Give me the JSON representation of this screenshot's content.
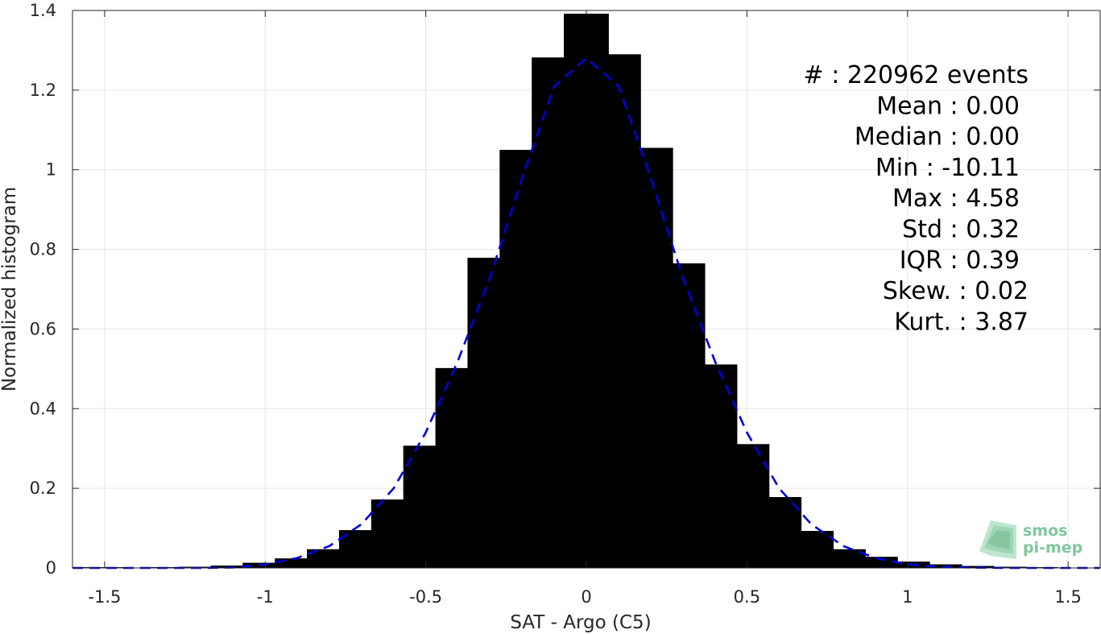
{
  "chart_data": {
    "type": "bar",
    "xlabel": "SAT - Argo (C5)",
    "ylabel": "Normalized histogram",
    "xlim": [
      -1.6,
      1.6
    ],
    "ylim": [
      0,
      1.4
    ],
    "xticks": [
      -1.5,
      -1,
      -0.5,
      0,
      0.5,
      1,
      1.5
    ],
    "xtick_labels": [
      "-1.5",
      "-1",
      "-0.5",
      "0",
      "0.5",
      "1",
      "1.5"
    ],
    "yticks": [
      0,
      0.2,
      0.4,
      0.6,
      0.8,
      1,
      1.2,
      1.4
    ],
    "ytick_labels": [
      "0",
      "0.2",
      "0.4",
      "0.6",
      "0.8",
      "1",
      "1.2",
      "1.4"
    ],
    "grid": true,
    "bar_color": "#000000",
    "bars": {
      "x": [
        -1.5,
        -1.4,
        -1.3,
        -1.2,
        -1.1,
        -1.0,
        -0.9,
        -0.8,
        -0.7,
        -0.6,
        -0.5,
        -0.4,
        -0.3,
        -0.2,
        -0.1,
        0.0,
        0.1,
        0.2,
        0.3,
        0.4,
        0.5,
        0.6,
        0.7,
        0.8,
        0.9,
        1.0,
        1.1,
        1.2,
        1.3,
        1.4,
        1.5
      ],
      "values": [
        0.002,
        0.001,
        0.002,
        0.003,
        0.006,
        0.013,
        0.024,
        0.047,
        0.095,
        0.172,
        0.307,
        0.502,
        0.779,
        1.05,
        1.282,
        1.392,
        1.29,
        1.055,
        0.765,
        0.511,
        0.311,
        0.178,
        0.093,
        0.047,
        0.028,
        0.016,
        0.009,
        0.005,
        0.003,
        0.002,
        0.001
      ]
    },
    "fit_curve": {
      "style": "dashed",
      "color": "#0000dd",
      "x": [
        -1.6,
        -1.5,
        -1.4,
        -1.3,
        -1.2,
        -1.1,
        -1.0,
        -0.9,
        -0.8,
        -0.7,
        -0.6,
        -0.5,
        -0.4,
        -0.3,
        -0.2,
        -0.1,
        0.0,
        0.1,
        0.2,
        0.3,
        0.4,
        0.5,
        0.6,
        0.7,
        0.8,
        0.9,
        1.0,
        1.1,
        1.2,
        1.3,
        1.4,
        1.5,
        1.6
      ],
      "y": [
        0.0,
        0.0,
        0.0,
        0.0,
        0.0,
        0.001,
        0.009,
        0.025,
        0.055,
        0.11,
        0.2,
        0.34,
        0.52,
        0.73,
        0.98,
        1.21,
        1.28,
        1.21,
        0.98,
        0.73,
        0.52,
        0.34,
        0.2,
        0.11,
        0.055,
        0.025,
        0.009,
        0.003,
        0.001,
        0.0,
        0.0,
        0.0,
        0.0
      ]
    }
  },
  "stats": [
    {
      "label": "#  : 220962 events"
    },
    {
      "label": "Mean : 0.00"
    },
    {
      "label": "Median : 0.00"
    },
    {
      "label": "Min : -10.11"
    },
    {
      "label": "Max : 4.58"
    },
    {
      "label": "Std : 0.32"
    },
    {
      "label": "IQR : 0.39"
    },
    {
      "label": "Skew. : 0.02"
    },
    {
      "label": "Kurt. : 3.87"
    }
  ],
  "logo": {
    "line1": "smos",
    "line2": "pi-mep",
    "color": "#7fc79d"
  }
}
